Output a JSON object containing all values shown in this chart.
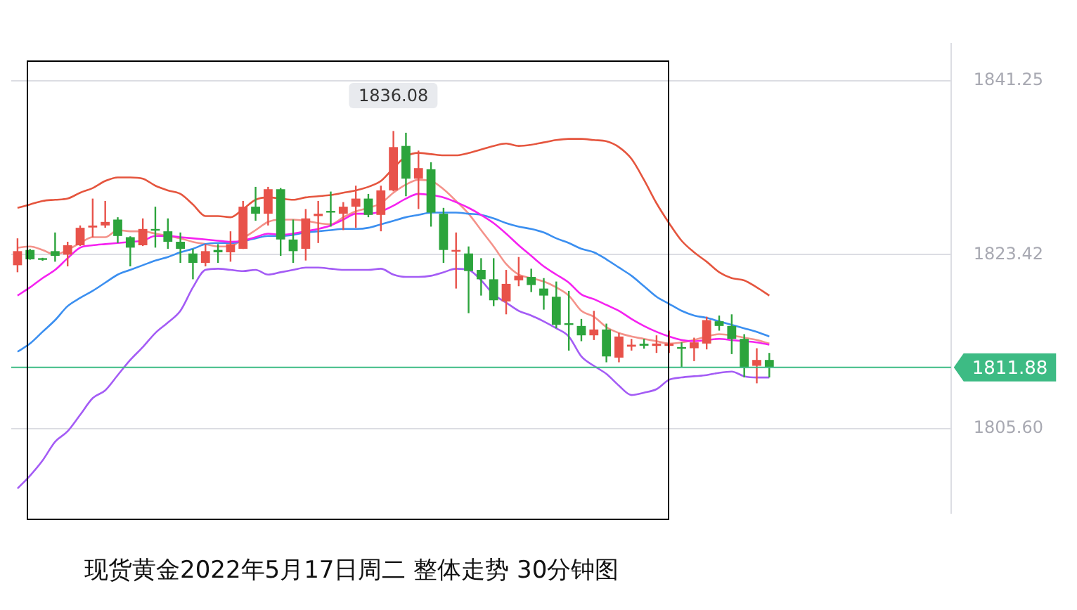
{
  "chart_data": {
    "type": "candlestick",
    "title": "现货黄金2022年5月17日周二 整体走势 30分钟图",
    "categories": [
      null,
      null,
      null,
      null,
      null,
      null,
      null,
      null,
      null,
      null,
      null,
      null,
      null,
      null,
      null,
      null,
      null,
      null,
      null,
      null,
      null,
      null,
      null,
      null,
      null,
      null,
      null,
      null,
      null,
      null,
      null,
      null,
      null,
      null,
      null,
      null,
      null,
      null,
      null,
      null,
      null,
      null,
      null,
      null,
      null,
      null,
      null,
      null,
      null,
      null,
      null,
      null,
      null,
      null,
      null,
      null,
      null,
      null,
      null,
      null,
      null,
      null,
      null,
      null,
      null,
      null,
      null,
      null,
      null,
      null,
      null,
      null,
      null,
      null,
      null
    ],
    "ohlc": [
      [
        1822.34,
        1825.09,
        1821.62,
        1823.78
      ],
      [
        1823.9,
        1824.0,
        1822.9,
        1822.94
      ],
      [
        1823.06,
        1823.1,
        1822.8,
        1822.94
      ],
      [
        1823.78,
        1825.69,
        1822.7,
        1823.3
      ],
      [
        1823.42,
        1824.74,
        1822.22,
        1824.38
      ],
      [
        1824.38,
        1826.41,
        1824.3,
        1826.17
      ],
      [
        1826.2,
        1829.16,
        1825.21,
        1826.4
      ],
      [
        1826.41,
        1828.92,
        1826.17,
        1826.77
      ],
      [
        1827.01,
        1827.25,
        1824.61,
        1825.33
      ],
      [
        1825.21,
        1825.3,
        1822.22,
        1824.14
      ],
      [
        1824.38,
        1827.13,
        1824.3,
        1826.05
      ],
      [
        1826.05,
        1828.33,
        1824.14,
        1825.95
      ],
      [
        1825.81,
        1827.13,
        1824.02,
        1824.74
      ],
      [
        1824.74,
        1825.69,
        1822.58,
        1824.02
      ],
      [
        1823.54,
        1824.02,
        1820.9,
        1822.58
      ],
      [
        1822.58,
        1824.5,
        1822.22,
        1823.78
      ],
      [
        1823.9,
        1824.5,
        1822.58,
        1823.66
      ],
      [
        1823.66,
        1825.81,
        1822.7,
        1824.5
      ],
      [
        1824.02,
        1828.92,
        1824.0,
        1828.33
      ],
      [
        1828.33,
        1830.36,
        1826.89,
        1827.61
      ],
      [
        1827.61,
        1830.36,
        1826.41,
        1830.12
      ],
      [
        1830.12,
        1830.24,
        1823.3,
        1824.97
      ],
      [
        1824.97,
        1827.01,
        1822.58,
        1823.78
      ],
      [
        1824.02,
        1828.09,
        1822.82,
        1827.13
      ],
      [
        1827.37,
        1828.92,
        1824.61,
        1827.61
      ],
      [
        1827.9,
        1829.88,
        1826.29,
        1827.8
      ],
      [
        1827.61,
        1828.8,
        1825.93,
        1828.33
      ],
      [
        1828.33,
        1830.48,
        1826.17,
        1829.16
      ],
      [
        1829.16,
        1829.64,
        1827.25,
        1827.49
      ],
      [
        1827.49,
        1830.48,
        1825.81,
        1830.0
      ],
      [
        1830.0,
        1836.08,
        1829.9,
        1834.43
      ],
      [
        1834.55,
        1835.9,
        1829.4,
        1831.2
      ],
      [
        1831.2,
        1834.07,
        1828.09,
        1832.28
      ],
      [
        1832.16,
        1832.88,
        1826.29,
        1827.73
      ],
      [
        1827.61,
        1828.21,
        1822.58,
        1823.9
      ],
      [
        1823.8,
        1825.69,
        1819.95,
        1823.9
      ],
      [
        1823.54,
        1824.26,
        1817.43,
        1821.74
      ],
      [
        1821.86,
        1823.06,
        1819.23,
        1820.9
      ],
      [
        1820.9,
        1823.06,
        1818.15,
        1818.75
      ],
      [
        1818.63,
        1821.86,
        1817.31,
        1820.43
      ],
      [
        1820.79,
        1823.18,
        1820.19,
        1821.26
      ],
      [
        1821.14,
        1821.98,
        1819.59,
        1820.31
      ],
      [
        1819.95,
        1821.02,
        1817.79,
        1819.23
      ],
      [
        1819.11,
        1820.67,
        1815.88,
        1816.24
      ],
      [
        1816.4,
        1819.71,
        1813.6,
        1816.3
      ],
      [
        1816.12,
        1816.84,
        1814.56,
        1815.16
      ],
      [
        1815.16,
        1817.67,
        1814.68,
        1815.76
      ],
      [
        1815.76,
        1816.36,
        1812.4,
        1813.0
      ],
      [
        1812.88,
        1815.4,
        1812.4,
        1815.04
      ],
      [
        1814.0,
        1814.8,
        1813.6,
        1814.2
      ],
      [
        1814.3,
        1814.8,
        1813.8,
        1814.1
      ],
      [
        1814.08,
        1815.16,
        1813.36,
        1814.32
      ],
      [
        1814.08,
        1815.64,
        1813.36,
        1814.32
      ],
      [
        1813.96,
        1814.44,
        1811.93,
        1813.84
      ],
      [
        1813.84,
        1814.92,
        1812.52,
        1814.44
      ],
      [
        1814.32,
        1817.07,
        1813.72,
        1816.72
      ],
      [
        1816.6,
        1817.19,
        1815.64,
        1816.12
      ],
      [
        1816.12,
        1817.31,
        1813.24,
        1814.8
      ],
      [
        1814.8,
        1815.28,
        1810.85,
        1811.81
      ],
      [
        1812.04,
        1813.84,
        1810.25,
        1812.64
      ],
      [
        1812.64,
        1813.36,
        1810.85,
        1811.88
      ],
      null,
      null,
      null,
      null,
      null,
      null,
      null,
      null,
      null,
      null,
      null,
      null,
      null,
      null
    ],
    "colors": [
      "#e8524a",
      "#2ca43c",
      "#2ca43c",
      "#2ca43c",
      "#e8524a",
      "#e8524a",
      "#e8524a",
      "#e8524a",
      "#2ca43c",
      "#2ca43c",
      "#e8524a",
      "#2ca43c",
      "#2ca43c",
      "#2ca43c",
      "#2ca43c",
      "#e8524a",
      "#2ca43c",
      "#e8524a",
      "#e8524a",
      "#2ca43c",
      "#e8524a",
      "#2ca43c",
      "#2ca43c",
      "#e8524a",
      "#e8524a",
      "#2ca43c",
      "#e8524a",
      "#e8524a",
      "#2ca43c",
      "#e8524a",
      "#e8524a",
      "#2ca43c",
      "#e8524a",
      "#2ca43c",
      "#2ca43c",
      "#e8524a",
      "#2ca43c",
      "#2ca43c",
      "#2ca43c",
      "#e8524a",
      "#e8524a",
      "#2ca43c",
      "#2ca43c",
      "#2ca43c",
      "#2ca43c",
      "#2ca43c",
      "#e8524a",
      "#2ca43c",
      "#e8524a",
      "#e8524a",
      "#2ca43c",
      "#e8524a",
      "#e8524a",
      "#2ca43c",
      "#e8524a",
      "#e8524a",
      "#2ca43c",
      "#2ca43c",
      "#2ca43c",
      "#e8524a",
      "#2ca43c",
      null,
      null,
      null,
      null,
      null,
      null,
      null,
      null,
      null,
      null,
      null,
      null,
      null,
      null
    ],
    "series": [
      {
        "type": "line",
        "color": "#e5553e",
        "values": [
          1828.21,
          1828.56,
          1828.92,
          1829.04,
          1829.16,
          1829.76,
          1830.24,
          1830.96,
          1831.32,
          1831.32,
          1831.2,
          1830.48,
          1830.0,
          1829.64,
          1828.56,
          1827.37,
          1827.37,
          1827.25,
          1828.09,
          1829.04,
          1829.28,
          1829.16,
          1829.04,
          1829.28,
          1829.4,
          1829.52,
          1829.76,
          1830.0,
          1830.36,
          1830.96,
          1832.28,
          1833.47,
          1833.83,
          1833.71,
          1833.59,
          1833.59,
          1833.83,
          1834.19,
          1834.55,
          1834.79,
          1834.55,
          1834.67,
          1834.91,
          1835.15,
          1835.27,
          1835.27,
          1835.15,
          1835.03,
          1834.43,
          1833.23,
          1831.08,
          1828.68,
          1826.65,
          1824.85,
          1823.66,
          1822.7,
          1821.62,
          1821.02,
          1820.79,
          1820.07,
          1819.23,
          null,
          null,
          null,
          null,
          null,
          null,
          null,
          null,
          null,
          null,
          null,
          null,
          null,
          null
        ]
      },
      {
        "type": "line",
        "color": "#a45cf5",
        "values": [
          1799.48,
          1800.8,
          1802.35,
          1804.27,
          1805.34,
          1807.02,
          1808.73,
          1809.53,
          1811.09,
          1812.64,
          1813.96,
          1815.4,
          1816.47,
          1817.67,
          1820.07,
          1821.86,
          1821.98,
          1821.86,
          1821.74,
          1821.86,
          1821.38,
          1821.62,
          1821.86,
          1822.1,
          1822.1,
          1821.98,
          1821.86,
          1821.86,
          1821.86,
          1821.98,
          1821.38,
          1821.14,
          1821.14,
          1821.26,
          1821.62,
          1821.98,
          1821.86,
          1820.79,
          1819.35,
          1818.51,
          1817.67,
          1817.19,
          1816.59,
          1815.88,
          1815.04,
          1813.0,
          1812.04,
          1811.21,
          1810.01,
          1809.05,
          1809.29,
          1809.65,
          1810.61,
          1810.85,
          1810.97,
          1811.09,
          1811.33,
          1811.45,
          1810.97,
          1810.85,
          1810.85,
          null,
          null,
          null,
          null,
          null,
          null,
          null,
          null,
          null,
          null,
          null,
          null,
          null,
          null
        ]
      },
      {
        "type": "line",
        "color": "#f522f0",
        "values": [
          1819.23,
          1820.07,
          1821.02,
          1821.86,
          1823.06,
          1824.14,
          1824.38,
          1824.5,
          1824.61,
          1824.73,
          1824.85,
          1825.33,
          1825.33,
          1825.21,
          1825.09,
          1824.97,
          1824.85,
          1824.73,
          1824.85,
          1825.21,
          1825.57,
          1825.45,
          1825.57,
          1825.81,
          1826.05,
          1826.41,
          1827.01,
          1827.61,
          1827.61,
          1827.85,
          1828.44,
          1829.16,
          1829.64,
          1829.52,
          1829.28,
          1828.8,
          1828.21,
          1827.49,
          1826.65,
          1825.57,
          1824.38,
          1823.3,
          1822.22,
          1821.38,
          1820.55,
          1819.35,
          1818.87,
          1818.27,
          1817.67,
          1816.84,
          1816.12,
          1815.52,
          1815.04,
          1814.68,
          1814.56,
          1814.68,
          1814.8,
          1814.68,
          1814.56,
          1814.44,
          1814.2,
          null,
          null,
          null,
          null,
          null,
          null,
          null,
          null,
          null,
          null,
          null,
          null,
          null,
          null
        ]
      },
      {
        "type": "line",
        "color": "#3b8ff0",
        "values": [
          1813.48,
          1814.32,
          1815.52,
          1816.72,
          1818.15,
          1818.99,
          1819.71,
          1820.55,
          1821.38,
          1821.86,
          1822.34,
          1822.82,
          1823.18,
          1823.66,
          1824.02,
          1824.5,
          1824.61,
          1824.61,
          null,
          1825.09,
          1825.33,
          1825.33,
          1825.45,
          1825.69,
          1825.81,
          1825.93,
          1826.05,
          1826.05,
          1826.17,
          1826.53,
          1826.89,
          1827.25,
          1827.49,
          1827.73,
          1827.73,
          1827.73,
          1827.61,
          1827.49,
          1827.13,
          1826.65,
          1826.29,
          1826.05,
          1825.69,
          1825.09,
          1824.61,
          1824.02,
          1823.66,
          1822.94,
          1822.1,
          1821.26,
          1820.19,
          1819.11,
          1818.39,
          1817.67,
          1817.19,
          1816.95,
          1816.59,
          1816.24,
          1815.88,
          1815.52,
          1815.04,
          null,
          null,
          null,
          null,
          null,
          null,
          null,
          null,
          null,
          null,
          null,
          null,
          null,
          null
        ]
      },
      {
        "type": "line",
        "color": "#f4928a",
        "values": [
          1824.14,
          1824.26,
          1823.9,
          1823.42,
          1823.9,
          1824.61,
          1825.21,
          1825.21,
          1825.93,
          1825.81,
          1825.81,
          1825.57,
          1825.33,
          1825.09,
          1824.73,
          1824.5,
          1824.26,
          1824.26,
          1825.09,
          1825.93,
          1826.77,
          1827.01,
          1827.01,
          1826.89,
          1826.65,
          1826.53,
          1827.25,
          1827.85,
          1828.21,
          1828.68,
          1829.76,
          1830.6,
          1831.08,
          1830.96,
          1830.12,
          1828.92,
          1827.61,
          1825.93,
          1824.26,
          1822.46,
          1821.38,
          1821.02,
          1820.67,
          1820.07,
          1819.23,
          1817.67,
          1817.07,
          1816.0,
          1815.4,
          1815.04,
          1814.8,
          1814.56,
          1814.32,
          1814.44,
          1814.68,
          1815.04,
          1815.28,
          1815.16,
          1814.92,
          1814.68,
          1814.32,
          null,
          null,
          null,
          null,
          null,
          null,
          null,
          null,
          null,
          null,
          null,
          null,
          null,
          null
        ]
      }
    ],
    "ylim": [
      1797,
      1845
    ],
    "yticks": [
      1841.25,
      1823.42,
      {
        "value": 1805.6,
        "label": "1805.60"
      }
    ],
    "ref_lines": [
      {
        "axis": "y",
        "value": 1811.88,
        "label": "1811.88",
        "color": "#3dbb84"
      }
    ],
    "annotations": [
      {
        "text": "1836.08",
        "y": 1836.08
      }
    ],
    "grid": "y",
    "legend": false,
    "marker": "none",
    "tick_labels": "y"
  }
}
